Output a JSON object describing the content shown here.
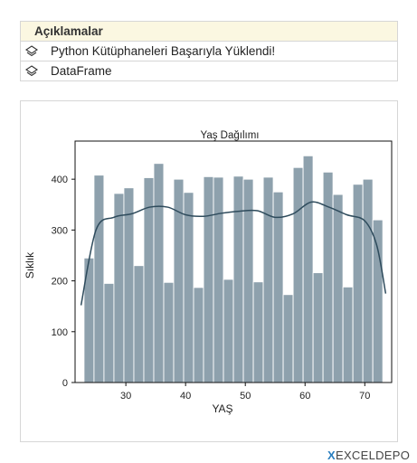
{
  "panel": {
    "title": "Açıklamalar",
    "rows": [
      {
        "icon": "layers-icon",
        "text": "Python Kütüphaneleri Başarıyla Yüklendi!"
      },
      {
        "icon": "layers-icon",
        "text": "DataFrame"
      }
    ]
  },
  "chart_data": {
    "type": "bar",
    "title": "Yaş Dağılımı",
    "xlabel": "YAŞ",
    "ylabel": "Sıklık",
    "xlim": [
      21.5,
      74.5
    ],
    "ylim": [
      0,
      475
    ],
    "xticks": [
      30,
      40,
      50,
      60,
      70
    ],
    "yticks": [
      0,
      100,
      200,
      300,
      400
    ],
    "bin_start": 23,
    "bin_width": 1.667,
    "values": [
      245,
      408,
      195,
      372,
      383,
      230,
      403,
      431,
      197,
      400,
      374,
      187,
      405,
      404,
      203,
      406,
      400,
      198,
      404,
      375,
      173,
      423,
      446,
      216,
      414,
      370,
      188,
      390,
      400,
      320
    ],
    "kde": [
      [
        22.5,
        152
      ],
      [
        25,
        300
      ],
      [
        28,
        325
      ],
      [
        31,
        332
      ],
      [
        34,
        345
      ],
      [
        37,
        345
      ],
      [
        40,
        330
      ],
      [
        43,
        327
      ],
      [
        46,
        333
      ],
      [
        49,
        337
      ],
      [
        52,
        338
      ],
      [
        55,
        325
      ],
      [
        58,
        332
      ],
      [
        61,
        355
      ],
      [
        64,
        345
      ],
      [
        67,
        330
      ],
      [
        70,
        318
      ],
      [
        72,
        270
      ],
      [
        73.5,
        175
      ]
    ],
    "bar_color": "#8ea1ad",
    "line_color": "#2e4b5c",
    "grid": false
  },
  "footer": {
    "brand": "EXCELDEPO",
    "mark": "X"
  }
}
